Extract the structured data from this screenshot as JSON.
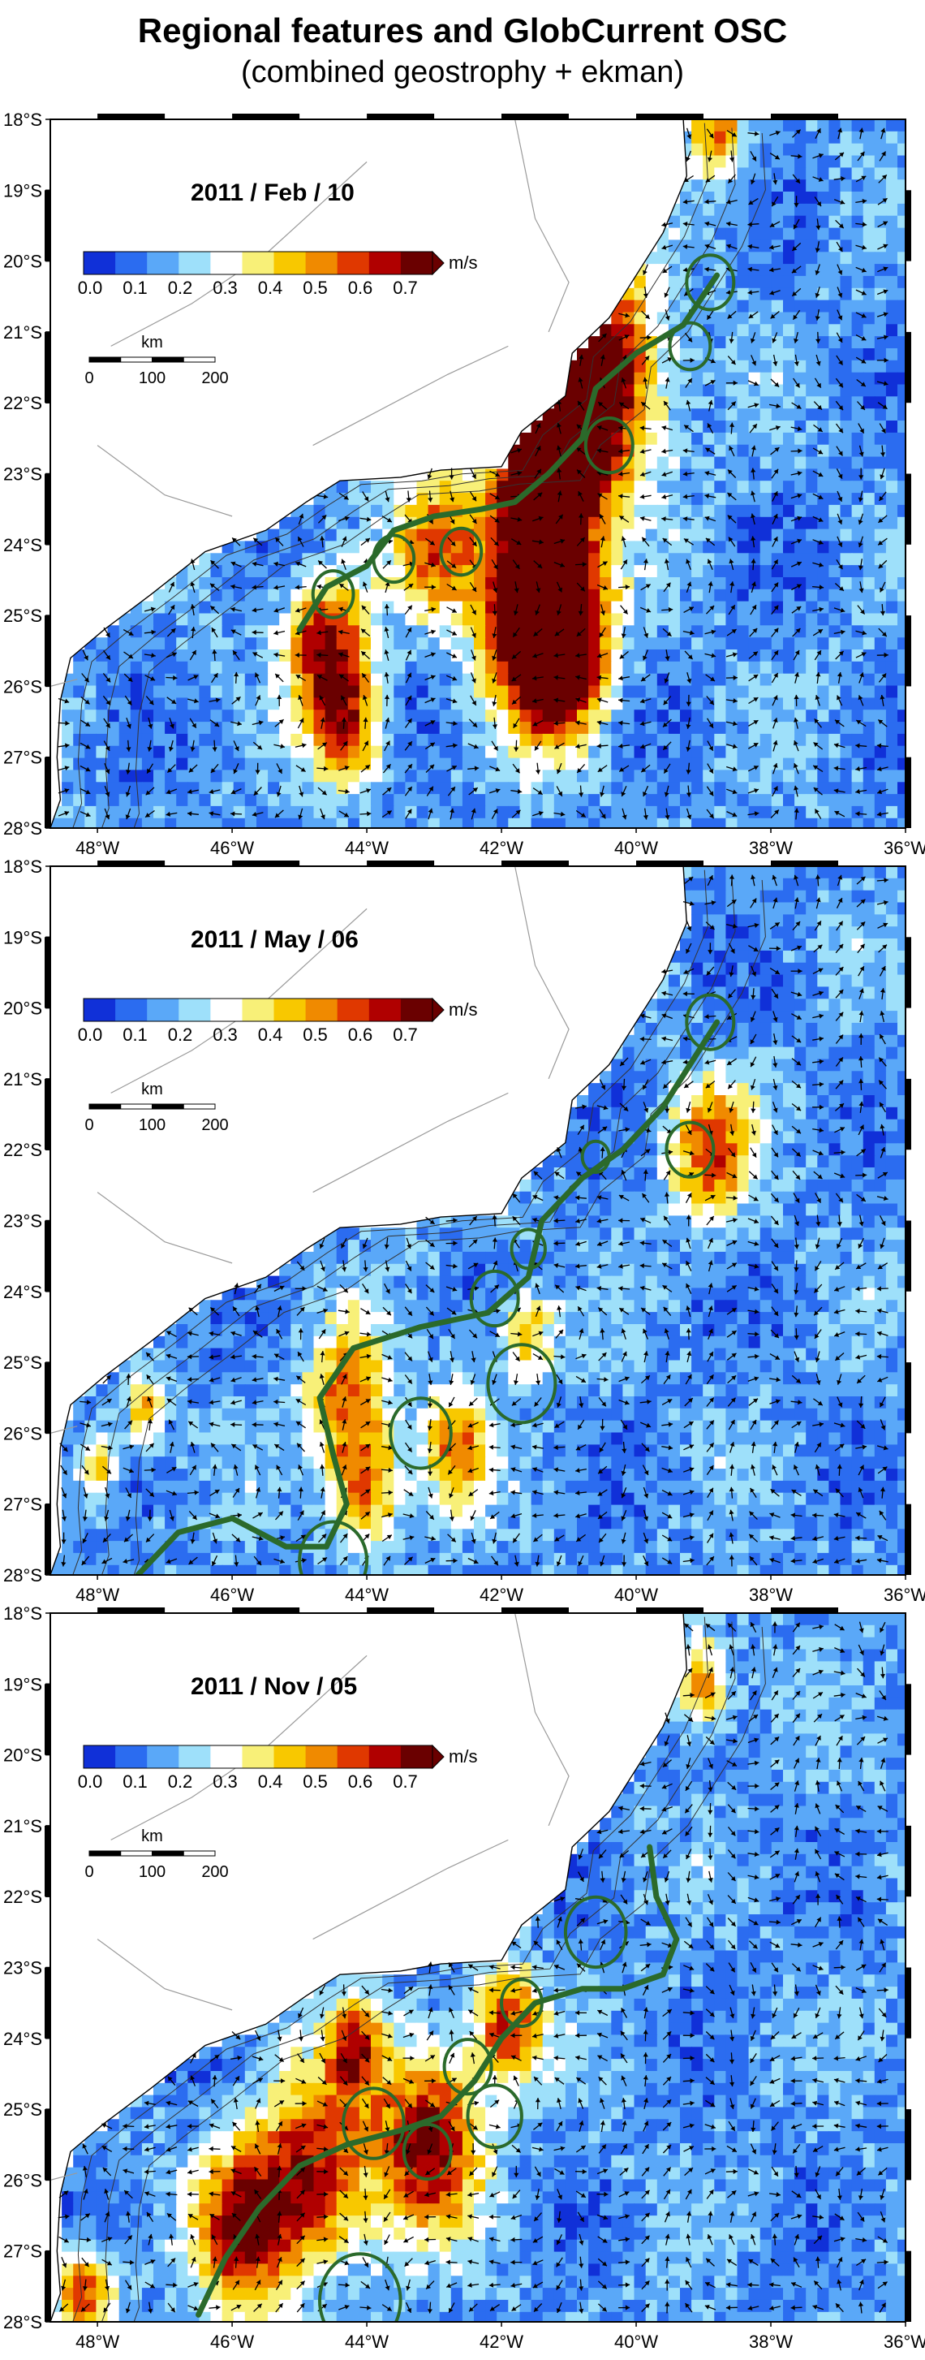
{
  "header": {
    "title": "Regional features and GlobCurrent OSC",
    "subtitle": "(combined geostrophy + ekman)"
  },
  "axes": {
    "lat_labels": [
      "18°S",
      "19°S",
      "20°S",
      "21°S",
      "22°S",
      "23°S",
      "24°S",
      "25°S",
      "26°S",
      "27°S",
      "28°S"
    ],
    "lon_labels": [
      "48°W",
      "46°W",
      "44°W",
      "42°W",
      "40°W",
      "38°W",
      "36°W"
    ]
  },
  "colorbar": {
    "ticks": [
      "0.0",
      "0.1",
      "0.2",
      "0.3",
      "0.4",
      "0.5",
      "0.6",
      "0.7"
    ],
    "unit": "m/s",
    "colors": [
      "#1030d8",
      "#2b6cf0",
      "#5aa8f8",
      "#9ee0fa",
      "#ffffff",
      "#f8f078",
      "#f8c800",
      "#f08a00",
      "#e03800",
      "#b00000",
      "#6a0000"
    ]
  },
  "scalebar": {
    "unit": "km",
    "ticks": [
      "0",
      "100",
      "200"
    ]
  },
  "panels": [
    {
      "date": "2011 / Feb / 10"
    },
    {
      "date": "2011 / May / 06"
    },
    {
      "date": "2011 / Nov / 05"
    }
  ],
  "style": {
    "land_color": "#ffffff",
    "coast_color": "#6a6a6a",
    "front_color": "#2b6a2b"
  }
}
